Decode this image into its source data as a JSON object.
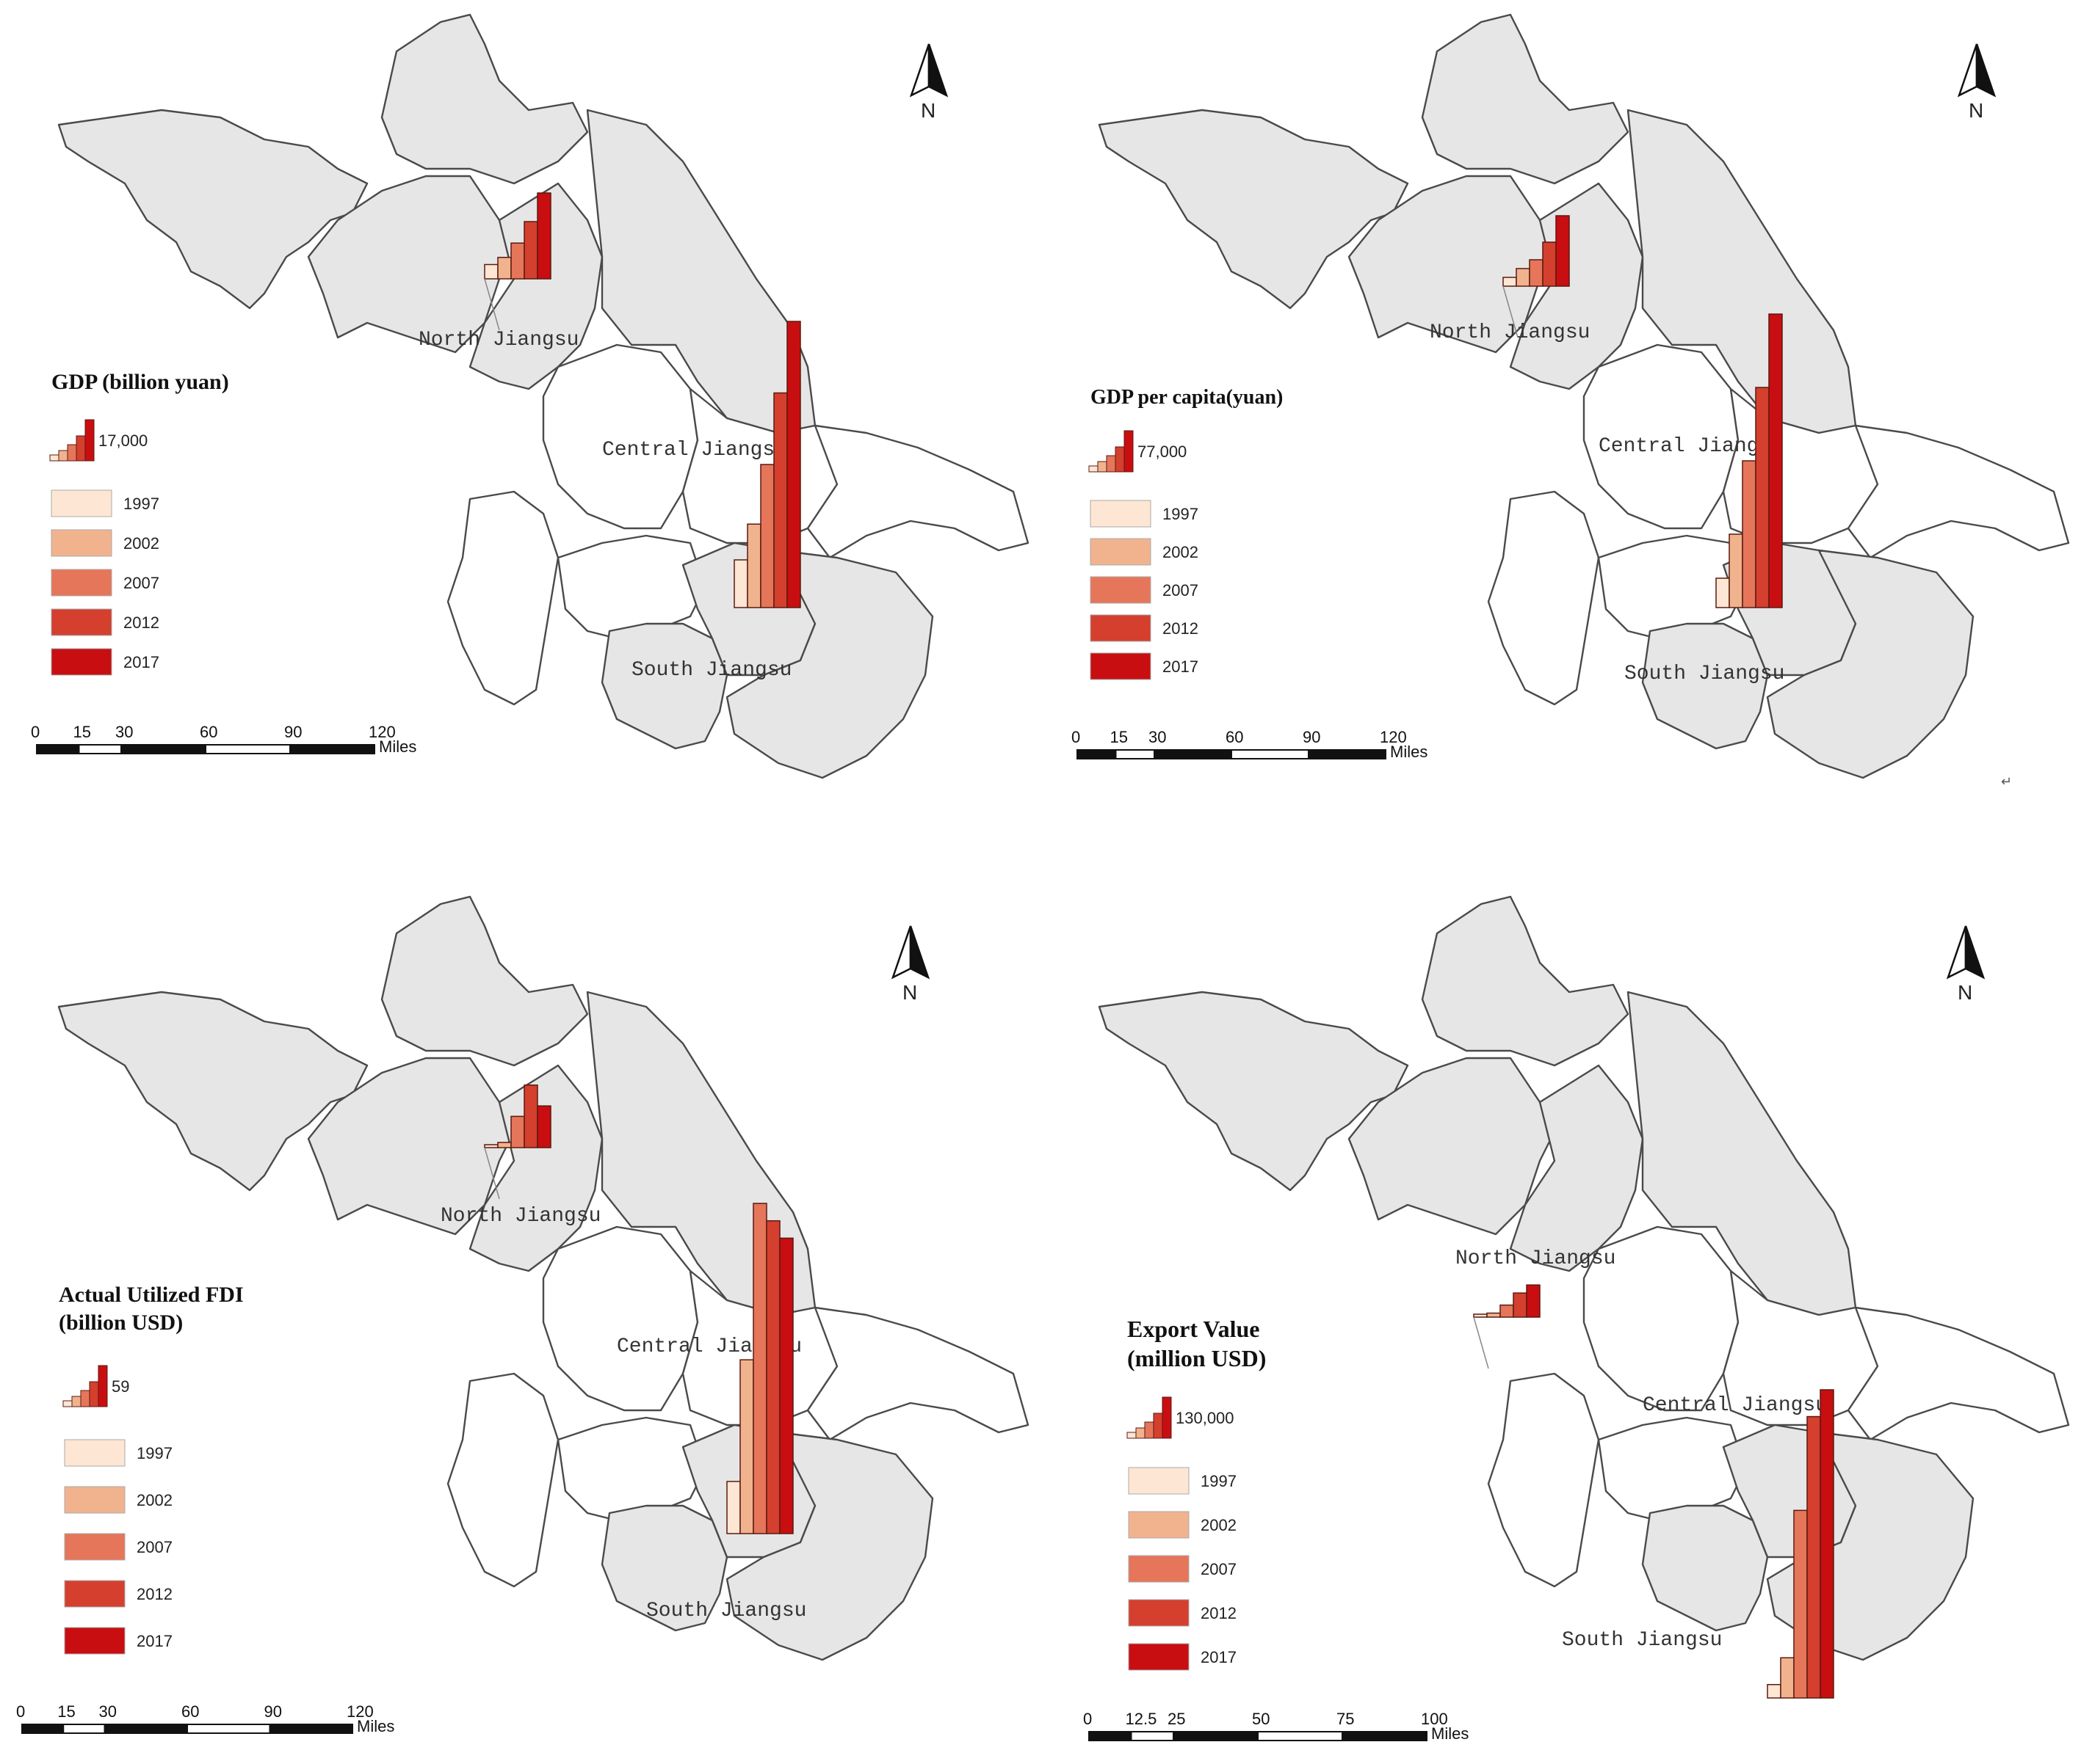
{
  "panels": [
    {
      "id": "gdp",
      "legend_title_lines": [
        "GDP (billion yuan)"
      ],
      "legend_max_label": "17,000",
      "legend_years": [
        "1997",
        "2002",
        "2007",
        "2012",
        "2017"
      ],
      "region_labels": [
        "North Jiangsu",
        "Central Jiangsu",
        "South Jiangsu"
      ],
      "north_arrow": "N",
      "scale_ticks": [
        "0",
        "15",
        "30",
        "60",
        "90",
        "120"
      ],
      "scale_unit": "Miles",
      "bars": {
        "North Jiangsu": [
          2,
          3,
          5,
          8,
          12
        ],
        "South Jiangsu": [
          4,
          7,
          12,
          18,
          24
        ]
      }
    },
    {
      "id": "gdp_per_capita",
      "legend_title_lines": [
        "GDP per capita(yuan)"
      ],
      "legend_max_label": "77,000",
      "legend_years": [
        "1997",
        "2002",
        "2007",
        "2012",
        "2017"
      ],
      "region_labels": [
        "North Jiangsu",
        "Central Jiangsu",
        "South Jiangsu"
      ],
      "north_arrow": "N",
      "scale_ticks": [
        "0",
        "15",
        "30",
        "60",
        "90",
        "120"
      ],
      "scale_unit": "Miles",
      "bars": {
        "North Jiangsu": [
          1,
          2,
          3,
          5,
          8
        ],
        "South Jiangsu": [
          2,
          5,
          10,
          15,
          20
        ]
      }
    },
    {
      "id": "fdi",
      "legend_title_lines": [
        "Actual Utilized FDI",
        "(billion USD)"
      ],
      "legend_max_label": "59",
      "legend_years": [
        "1997",
        "2002",
        "2007",
        "2012",
        "2017"
      ],
      "region_labels": [
        "North Jiangsu",
        "Central Jiangsu",
        "South Jiangsu"
      ],
      "north_arrow": "N",
      "scale_ticks": [
        "0",
        "15",
        "30",
        "60",
        "90",
        "120"
      ],
      "scale_unit": "Miles",
      "bars": {
        "North Jiangsu": [
          0.2,
          0.5,
          3,
          6,
          4
        ],
        "South Jiangsu": [
          3,
          10,
          19,
          18,
          17
        ]
      }
    },
    {
      "id": "export",
      "legend_title_lines": [
        "Export Value",
        "(million USD)"
      ],
      "legend_max_label": "130,000",
      "legend_years": [
        "1997",
        "2002",
        "2007",
        "2012",
        "2017"
      ],
      "region_labels": [
        "North Jiangsu",
        "Central Jiangsu",
        "South Jiangsu"
      ],
      "north_arrow": "N",
      "scale_ticks": [
        "0",
        "12.5",
        "25",
        "50",
        "75",
        "100"
      ],
      "scale_unit": "Miles",
      "bars": {
        "North Jiangsu": [
          0.3,
          0.5,
          1.5,
          3,
          4
        ],
        "South Jiangsu": [
          1,
          3,
          14,
          21,
          23
        ]
      }
    }
  ],
  "year_colors": [
    "#fde6d3",
    "#f1b38e",
    "#e5765a",
    "#d43f2e",
    "#c80e10"
  ],
  "stray_mark": "↵"
}
